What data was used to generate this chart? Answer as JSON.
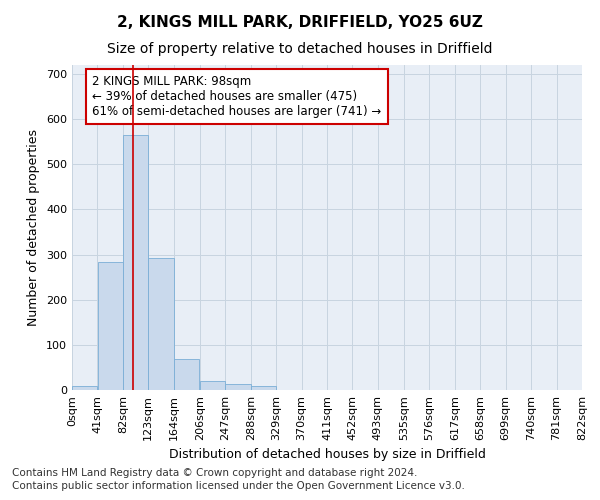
{
  "title": "2, KINGS MILL PARK, DRIFFIELD, YO25 6UZ",
  "subtitle": "Size of property relative to detached houses in Driffield",
  "xlabel": "Distribution of detached houses by size in Driffield",
  "ylabel": "Number of detached properties",
  "footnote1": "Contains HM Land Registry data © Crown copyright and database right 2024.",
  "footnote2": "Contains public sector information licensed under the Open Government Licence v3.0.",
  "bar_color": "#c9d9ec",
  "bar_edge_color": "#7aaed6",
  "grid_color": "#c8d4e0",
  "annotation_box_color": "#cc0000",
  "vline_color": "#cc0000",
  "bin_edges": [
    0,
    41,
    82,
    123,
    164,
    206,
    247,
    288,
    329,
    370,
    411,
    452,
    493,
    535,
    576,
    617,
    658,
    699,
    740,
    781,
    822
  ],
  "bar_heights": [
    8,
    283,
    565,
    293,
    68,
    20,
    14,
    9,
    0,
    0,
    0,
    0,
    0,
    0,
    0,
    0,
    0,
    0,
    0,
    0
  ],
  "property_size": 98,
  "vline_x": 98,
  "annotation_text": "2 KINGS MILL PARK: 98sqm\n← 39% of detached houses are smaller (475)\n61% of semi-detached houses are larger (741) →",
  "ylim": [
    0,
    720
  ],
  "yticks": [
    0,
    100,
    200,
    300,
    400,
    500,
    600,
    700
  ],
  "title_fontsize": 11,
  "subtitle_fontsize": 10,
  "axis_fontsize": 9,
  "tick_fontsize": 8,
  "annotation_fontsize": 8.5,
  "footnote_fontsize": 7.5,
  "background_color": "#ffffff",
  "plot_background": "#e8eef6"
}
